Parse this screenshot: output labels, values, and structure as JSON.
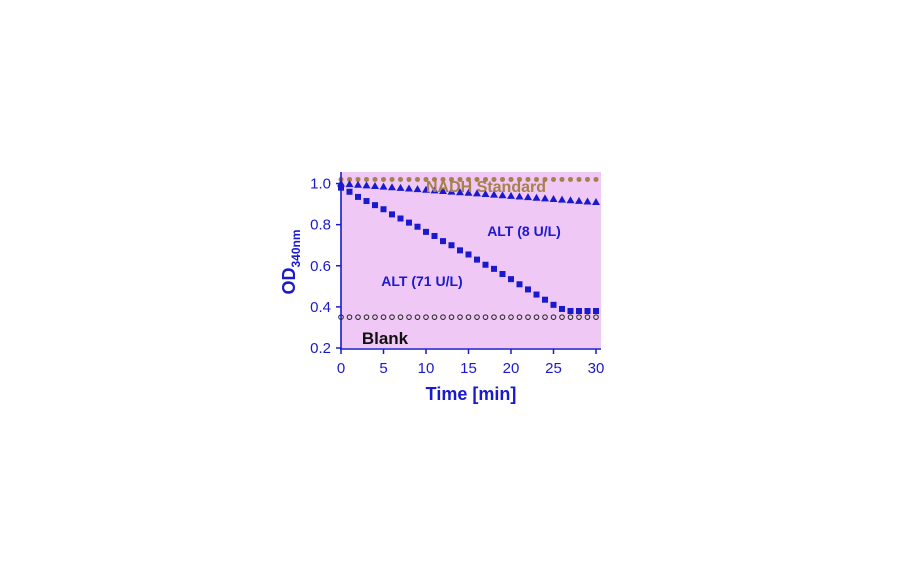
{
  "chart_data": {
    "type": "scatter",
    "xlabel": "Time [min]",
    "ylabel_main": "OD",
    "ylabel_sub": "340nm",
    "xlim": [
      0,
      30
    ],
    "ylim": [
      0.2,
      1.1
    ],
    "xticks": [
      "0",
      "5",
      "10",
      "15",
      "20",
      "25",
      "30"
    ],
    "yticks": [
      "0.2",
      "0.4",
      "0.6",
      "0.8",
      "1.0"
    ],
    "grid": false,
    "legend": "none",
    "plot_background": "#efc8f5",
    "axis_color": "#1a1acc",
    "series": [
      {
        "name": "NADH Standard",
        "marker": "circle-filled",
        "color": "#a8804a",
        "x": [
          0,
          1,
          2,
          3,
          4,
          5,
          6,
          7,
          8,
          9,
          10,
          11,
          12,
          13,
          14,
          15,
          16,
          17,
          18,
          19,
          20,
          21,
          22,
          23,
          24,
          25,
          26,
          27,
          28,
          29,
          30
        ],
        "y": [
          1.02,
          1.02,
          1.02,
          1.02,
          1.02,
          1.02,
          1.02,
          1.02,
          1.02,
          1.02,
          1.02,
          1.02,
          1.02,
          1.02,
          1.02,
          1.02,
          1.02,
          1.02,
          1.02,
          1.02,
          1.02,
          1.02,
          1.02,
          1.02,
          1.02,
          1.02,
          1.02,
          1.02,
          1.02,
          1.02,
          1.02
        ]
      },
      {
        "name": "ALT (8 U/L)",
        "marker": "triangle",
        "color": "#1a1acc",
        "x": [
          0,
          1,
          2,
          3,
          4,
          5,
          6,
          7,
          8,
          9,
          10,
          11,
          12,
          13,
          14,
          15,
          16,
          17,
          18,
          19,
          20,
          21,
          22,
          23,
          24,
          25,
          26,
          27,
          28,
          29,
          30
        ],
        "y": [
          1.0,
          0.997,
          0.994,
          0.991,
          0.988,
          0.985,
          0.982,
          0.979,
          0.976,
          0.973,
          0.97,
          0.967,
          0.964,
          0.961,
          0.958,
          0.955,
          0.952,
          0.949,
          0.946,
          0.943,
          0.94,
          0.937,
          0.934,
          0.931,
          0.928,
          0.925,
          0.922,
          0.919,
          0.916,
          0.913,
          0.91
        ]
      },
      {
        "name": "ALT (71 U/L)",
        "marker": "square",
        "color": "#1a1acc",
        "x": [
          0,
          1,
          2,
          3,
          4,
          5,
          6,
          7,
          8,
          9,
          10,
          11,
          12,
          13,
          14,
          15,
          16,
          17,
          18,
          19,
          20,
          21,
          22,
          23,
          24,
          25,
          26,
          27,
          28,
          29,
          30
        ],
        "y": [
          0.98,
          0.96,
          0.935,
          0.915,
          0.895,
          0.875,
          0.85,
          0.83,
          0.81,
          0.79,
          0.765,
          0.745,
          0.72,
          0.7,
          0.675,
          0.655,
          0.63,
          0.605,
          0.585,
          0.56,
          0.535,
          0.51,
          0.485,
          0.46,
          0.435,
          0.41,
          0.39,
          0.38,
          0.38,
          0.38,
          0.38
        ]
      },
      {
        "name": "Blank",
        "marker": "circle-open",
        "color": "#222222",
        "x": [
          0,
          1,
          2,
          3,
          4,
          5,
          6,
          7,
          8,
          9,
          10,
          11,
          12,
          13,
          14,
          15,
          16,
          17,
          18,
          19,
          20,
          21,
          22,
          23,
          24,
          25,
          26,
          27,
          28,
          29,
          30
        ],
        "y": [
          0.35,
          0.35,
          0.35,
          0.35,
          0.35,
          0.35,
          0.35,
          0.35,
          0.35,
          0.35,
          0.35,
          0.35,
          0.35,
          0.35,
          0.35,
          0.35,
          0.35,
          0.35,
          0.35,
          0.35,
          0.35,
          0.35,
          0.35,
          0.35,
          0.35,
          0.35,
          0.35,
          0.35,
          0.35,
          0.35,
          0.35
        ]
      }
    ],
    "annotations": [
      {
        "text": "NADH Standard",
        "color": "#a8804a"
      },
      {
        "text": "ALT (8 U/L)",
        "color": "#1a1acc"
      },
      {
        "text": "ALT (71 U/L)",
        "color": "#1a1acc"
      },
      {
        "text": "Blank",
        "color": "#111111"
      }
    ]
  }
}
